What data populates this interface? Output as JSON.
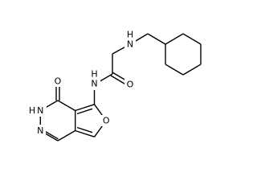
{
  "atoms": [
    {
      "element": "N",
      "hydrogen": "H"
    },
    {
      "element": "O"
    },
    {
      "element": "N",
      "hydrogen": "H"
    },
    {
      "element": "O"
    },
    {
      "element": "N",
      "hydrogen": "H"
    },
    {
      "element": "N"
    },
    {
      "element": "O"
    }
  ]
}
